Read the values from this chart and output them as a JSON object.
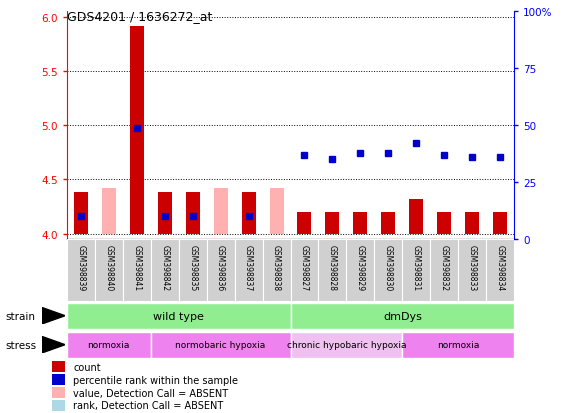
{
  "title": "GDS4201 / 1636272_at",
  "samples": [
    "GSM398839",
    "GSM398840",
    "GSM398841",
    "GSM398842",
    "GSM398835",
    "GSM398836",
    "GSM398837",
    "GSM398838",
    "GSM398827",
    "GSM398828",
    "GSM398829",
    "GSM398830",
    "GSM398831",
    "GSM398832",
    "GSM398833",
    "GSM398834"
  ],
  "count_values": [
    4.38,
    4.42,
    5.92,
    4.38,
    4.38,
    4.42,
    4.38,
    4.42,
    4.2,
    4.2,
    4.2,
    4.2,
    4.32,
    4.2,
    4.2,
    4.2
  ],
  "percentile_rank": [
    10,
    null,
    49,
    10,
    10,
    null,
    10,
    null,
    37,
    35,
    38,
    38,
    42,
    37,
    36,
    36
  ],
  "detection_absent": [
    false,
    true,
    false,
    false,
    false,
    true,
    false,
    true,
    false,
    false,
    false,
    false,
    false,
    false,
    false,
    false
  ],
  "strain_groups": [
    {
      "label": "wild type",
      "start": 0,
      "end": 8,
      "color": "#90ee90"
    },
    {
      "label": "dmDys",
      "start": 8,
      "end": 16,
      "color": "#90ee90"
    }
  ],
  "stress_groups": [
    {
      "label": "normoxia",
      "start": 0,
      "end": 3,
      "color": "#ee82ee"
    },
    {
      "label": "normobaric hypoxia",
      "start": 3,
      "end": 8,
      "color": "#ee82ee"
    },
    {
      "label": "chronic hypobaric hypoxia",
      "start": 8,
      "end": 12,
      "color": "#f0c0f0"
    },
    {
      "label": "normoxia",
      "start": 12,
      "end": 16,
      "color": "#ee82ee"
    }
  ],
  "ylim_left": [
    3.95,
    6.05
  ],
  "ylim_right": [
    0,
    100
  ],
  "yticks_left": [
    4.0,
    4.5,
    5.0,
    5.5,
    6.0
  ],
  "yticks_right": [
    0,
    25,
    50,
    75,
    100
  ],
  "bar_color_present": "#cc0000",
  "bar_color_absent": "#ffb0b0",
  "rank_color_present": "#0000cc",
  "rank_color_absent": "#add8e6",
  "bg_color": "#ffffff",
  "plot_bg": "#ffffff",
  "bar_width": 0.5,
  "label_area_color": "#d0d0d0"
}
